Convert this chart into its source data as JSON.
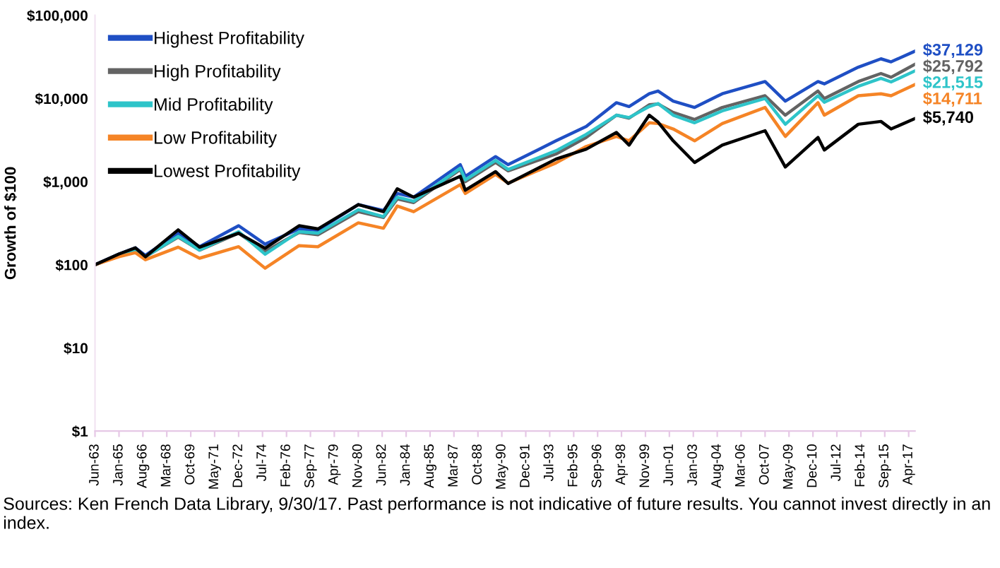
{
  "chart_data": {
    "type": "line",
    "ylabel": "Growth of $100",
    "log": "y",
    "legend": "top left",
    "grid": false,
    "marker": "none",
    "line_style": "solid",
    "x": [
      "1963-06",
      "1965-01",
      "1966-02",
      "1966-10",
      "1968-12",
      "1970-05",
      "1972-12",
      "1974-09",
      "1976-12",
      "1978-03",
      "1980-11",
      "1982-07",
      "1983-06",
      "1984-07",
      "1987-08",
      "1987-12",
      "1989-12",
      "1990-10",
      "1993-12",
      "1995-12",
      "1997-12",
      "1998-10",
      "2000-02",
      "2000-09",
      "2001-09",
      "2003-02",
      "2004-12",
      "2007-10",
      "2009-02",
      "2011-04",
      "2011-09",
      "2013-12",
      "2015-06",
      "2016-02",
      "2017-09"
    ],
    "series": [
      {
        "name": "Highest Profitability",
        "color": "#1f4fc4",
        "values": [
          100,
          135,
          160,
          130,
          240,
          165,
          295,
          177,
          270,
          260,
          530,
          450,
          720,
          650,
          1600,
          1160,
          2000,
          1600,
          3100,
          4600,
          8900,
          8000,
          11400,
          12300,
          9300,
          7800,
          11400,
          16000,
          9300,
          16000,
          15000,
          23800,
          30000,
          27600,
          37129
        ]
      },
      {
        "name": "High Profitability",
        "color": "#636363",
        "values": [
          100,
          130,
          150,
          125,
          215,
          150,
          240,
          145,
          245,
          230,
          435,
          370,
          620,
          560,
          1400,
          1000,
          1700,
          1350,
          2150,
          3400,
          6300,
          5800,
          8400,
          8600,
          6800,
          5600,
          7800,
          10800,
          6300,
          12300,
          10000,
          16000,
          20000,
          18000,
          25792
        ]
      },
      {
        "name": "Mid Profitability",
        "color": "#2ec4c9",
        "values": [
          null,
          130,
          150,
          125,
          220,
          150,
          250,
          134,
          250,
          240,
          460,
          380,
          650,
          580,
          1450,
          1050,
          1800,
          1400,
          2350,
          3700,
          6300,
          5900,
          8000,
          8700,
          6300,
          5100,
          7100,
          10000,
          4900,
          10800,
          9000,
          14000,
          17500,
          15800,
          21515
        ]
      },
      {
        "name": "Low Profitability",
        "color": "#f58426",
        "values": [
          100,
          125,
          140,
          115,
          163,
          120,
          165,
          91,
          170,
          165,
          320,
          275,
          510,
          435,
          920,
          720,
          1220,
          960,
          1680,
          2650,
          3500,
          3100,
          5100,
          5000,
          4300,
          3100,
          5000,
          7800,
          3500,
          8900,
          6300,
          10800,
          11400,
          10800,
          14711
        ]
      },
      {
        "name": "Lowest Profitability",
        "color": "#000000",
        "values": [
          100,
          135,
          160,
          125,
          263,
          163,
          240,
          158,
          295,
          270,
          530,
          435,
          820,
          650,
          1160,
          790,
          1320,
          950,
          1870,
          2460,
          3900,
          2750,
          6300,
          5200,
          3100,
          1700,
          2750,
          4100,
          1500,
          3400,
          2400,
          4900,
          5300,
          4300,
          5740
        ]
      }
    ],
    "ylim": [
      1,
      100000
    ],
    "yticks": [
      {
        "value": 1,
        "label": "$1"
      },
      {
        "value": 10,
        "label": "$10"
      },
      {
        "value": 100,
        "label": "$100"
      },
      {
        "value": 1000,
        "label": "$1,000"
      },
      {
        "value": 10000,
        "label": "$10,000"
      },
      {
        "value": 100000,
        "label": "$100,000"
      }
    ],
    "xlim": [
      "1963-06",
      "2017-09"
    ],
    "xticks": [
      {
        "value": "1963-06",
        "label": "Jun-63"
      },
      {
        "value": "1965-01",
        "label": "Jan-65"
      },
      {
        "value": "1966-08",
        "label": "Aug-66"
      },
      {
        "value": "1968-03",
        "label": "Mar-68"
      },
      {
        "value": "1969-10",
        "label": "Oct-69"
      },
      {
        "value": "1971-05",
        "label": "May-71"
      },
      {
        "value": "1972-12",
        "label": "Dec-72"
      },
      {
        "value": "1974-07",
        "label": "Jul-74"
      },
      {
        "value": "1976-02",
        "label": "Feb-76"
      },
      {
        "value": "1977-09",
        "label": "Sep-77"
      },
      {
        "value": "1979-04",
        "label": "Apr-79"
      },
      {
        "value": "1980-11",
        "label": "Nov-80"
      },
      {
        "value": "1982-06",
        "label": "Jun-82"
      },
      {
        "value": "1984-01",
        "label": "Jan-84"
      },
      {
        "value": "1985-08",
        "label": "Aug-85"
      },
      {
        "value": "1987-03",
        "label": "Mar-87"
      },
      {
        "value": "1988-10",
        "label": "Oct-88"
      },
      {
        "value": "1990-05",
        "label": "May-90"
      },
      {
        "value": "1991-12",
        "label": "Dec-91"
      },
      {
        "value": "1993-07",
        "label": "Jul-93"
      },
      {
        "value": "1995-02",
        "label": "Feb-95"
      },
      {
        "value": "1996-09",
        "label": "Sep-96"
      },
      {
        "value": "1998-04",
        "label": "Apr-98"
      },
      {
        "value": "1999-11",
        "label": "Nov-99"
      },
      {
        "value": "2001-06",
        "label": "Jun-01"
      },
      {
        "value": "2003-01",
        "label": "Jan-03"
      },
      {
        "value": "2004-08",
        "label": "Aug-04"
      },
      {
        "value": "2006-03",
        "label": "Mar-06"
      },
      {
        "value": "2007-10",
        "label": "Oct-07"
      },
      {
        "value": "2009-05",
        "label": "May-09"
      },
      {
        "value": "2010-12",
        "label": "Dec-10"
      },
      {
        "value": "2012-07",
        "label": "Jul-12"
      },
      {
        "value": "2014-02",
        "label": "Feb-14"
      },
      {
        "value": "2015-09",
        "label": "Sep-15"
      },
      {
        "value": "2017-04",
        "label": "Apr-17"
      }
    ],
    "annotations": [
      {
        "text": "$37,129",
        "x": "2017-09",
        "y": 37129
      },
      {
        "text": "$25,792",
        "x": "2017-09",
        "y": 25792
      },
      {
        "text": "$21,515",
        "x": "2017-09",
        "y": 21515
      },
      {
        "text": "$14,711",
        "x": "2017-09",
        "y": 14711
      },
      {
        "text": "$5,740",
        "x": "2017-09",
        "y": 5740
      },
      "Sources: Ken French Data Library, 9/30/17. Past performance is not indicative of future results. You cannot invest directly in an index."
    ]
  }
}
